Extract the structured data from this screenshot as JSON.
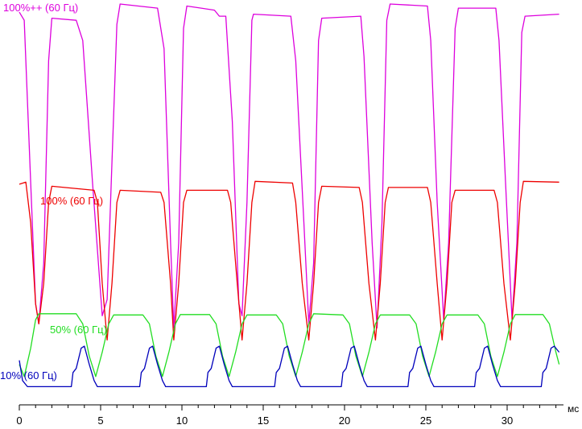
{
  "chart_data": {
    "type": "line",
    "title": "",
    "xlabel": "мс",
    "ylabel": "",
    "xlim": [
      0,
      33.2
    ],
    "ylim": [
      0,
      1
    ],
    "grid": false,
    "x_ticks": [
      0,
      5,
      10,
      15,
      20,
      25,
      30
    ],
    "x_tick_labels": [
      "0",
      "5",
      "10",
      "15",
      "20",
      "25",
      "30"
    ],
    "period_ms": 4.17,
    "series": [
      {
        "name": "100%++ (60 Гц)",
        "color": "#dd00dd",
        "points": [
          [
            0,
            0.97
          ],
          [
            0.3,
            0.95
          ],
          [
            0.7,
            0.55
          ],
          [
            1.0,
            0.25
          ],
          [
            1.2,
            0.2
          ],
          [
            1.5,
            0.35
          ],
          [
            1.8,
            0.85
          ],
          [
            2.0,
            0.955
          ],
          [
            3.5,
            0.95
          ],
          [
            3.9,
            0.9
          ],
          [
            4.5,
            0.55
          ],
          [
            5.1,
            0.22
          ],
          [
            5.4,
            0.26
          ],
          [
            5.7,
            0.6
          ],
          [
            6.0,
            0.94
          ],
          [
            6.2,
            0.99
          ],
          [
            8.5,
            0.98
          ],
          [
            8.9,
            0.88
          ],
          [
            9.3,
            0.4
          ],
          [
            9.5,
            0.19
          ],
          [
            9.8,
            0.4
          ],
          [
            10.1,
            0.93
          ],
          [
            10.3,
            0.985
          ],
          [
            12.0,
            0.975
          ],
          [
            12.3,
            0.96
          ],
          [
            12.7,
            0.96
          ],
          [
            13.1,
            0.7
          ],
          [
            13.5,
            0.25
          ],
          [
            13.7,
            0.22
          ],
          [
            14.0,
            0.5
          ],
          [
            14.3,
            0.95
          ],
          [
            14.4,
            0.965
          ],
          [
            16.7,
            0.96
          ],
          [
            17.0,
            0.85
          ],
          [
            17.5,
            0.45
          ],
          [
            17.8,
            0.2
          ],
          [
            18.1,
            0.35
          ],
          [
            18.4,
            0.9
          ],
          [
            18.6,
            0.955
          ],
          [
            21.0,
            0.96
          ],
          [
            21.2,
            0.86
          ],
          [
            21.7,
            0.4
          ],
          [
            22.0,
            0.19
          ],
          [
            22.3,
            0.45
          ],
          [
            22.6,
            0.95
          ],
          [
            22.8,
            0.99
          ],
          [
            25.1,
            0.985
          ],
          [
            25.3,
            0.9
          ],
          [
            25.7,
            0.5
          ],
          [
            26.1,
            0.21
          ],
          [
            26.4,
            0.4
          ],
          [
            26.8,
            0.93
          ],
          [
            27.0,
            0.98
          ],
          [
            29.3,
            0.98
          ],
          [
            29.5,
            0.9
          ],
          [
            29.9,
            0.55
          ],
          [
            30.3,
            0.21
          ],
          [
            30.6,
            0.4
          ],
          [
            30.9,
            0.92
          ],
          [
            31.1,
            0.96
          ],
          [
            33.2,
            0.965
          ]
        ]
      },
      {
        "name": "100% (60 Гц)",
        "color": "#ee0000",
        "points": [
          [
            0,
            0.545
          ],
          [
            0.4,
            0.55
          ],
          [
            0.7,
            0.45
          ],
          [
            1.0,
            0.25
          ],
          [
            1.2,
            0.2
          ],
          [
            1.5,
            0.3
          ],
          [
            1.8,
            0.5
          ],
          [
            2.0,
            0.54
          ],
          [
            4.6,
            0.53
          ],
          [
            4.8,
            0.5
          ],
          [
            5.1,
            0.3
          ],
          [
            5.4,
            0.16
          ],
          [
            5.7,
            0.3
          ],
          [
            6.0,
            0.5
          ],
          [
            6.2,
            0.53
          ],
          [
            8.7,
            0.525
          ],
          [
            8.9,
            0.5
          ],
          [
            9.3,
            0.3
          ],
          [
            9.5,
            0.16
          ],
          [
            9.8,
            0.3
          ],
          [
            10.1,
            0.5
          ],
          [
            10.3,
            0.53
          ],
          [
            12.8,
            0.53
          ],
          [
            13.0,
            0.5
          ],
          [
            13.4,
            0.3
          ],
          [
            13.7,
            0.16
          ],
          [
            14.0,
            0.3
          ],
          [
            14.3,
            0.5
          ],
          [
            14.5,
            0.552
          ],
          [
            16.8,
            0.548
          ],
          [
            17.0,
            0.5
          ],
          [
            17.4,
            0.3
          ],
          [
            17.8,
            0.16
          ],
          [
            18.1,
            0.3
          ],
          [
            18.4,
            0.5
          ],
          [
            18.6,
            0.54
          ],
          [
            20.9,
            0.537
          ],
          [
            21.1,
            0.5
          ],
          [
            21.5,
            0.3
          ],
          [
            21.9,
            0.16
          ],
          [
            22.2,
            0.3
          ],
          [
            22.5,
            0.5
          ],
          [
            22.7,
            0.537
          ],
          [
            25.1,
            0.537
          ],
          [
            25.3,
            0.5
          ],
          [
            25.7,
            0.3
          ],
          [
            26.0,
            0.16
          ],
          [
            26.3,
            0.3
          ],
          [
            26.6,
            0.5
          ],
          [
            26.8,
            0.53
          ],
          [
            29.2,
            0.53
          ],
          [
            29.4,
            0.5
          ],
          [
            29.8,
            0.3
          ],
          [
            30.2,
            0.16
          ],
          [
            30.5,
            0.3
          ],
          [
            30.8,
            0.5
          ],
          [
            31.0,
            0.552
          ],
          [
            33.2,
            0.55
          ]
        ]
      },
      {
        "name": "50% (60 Гц)",
        "color": "#22dd22",
        "points": [
          [
            0,
            0.1
          ],
          [
            0.3,
            0.07
          ],
          [
            0.7,
            0.14
          ],
          [
            1.0,
            0.21
          ],
          [
            1.2,
            0.225
          ],
          [
            3.5,
            0.225
          ],
          [
            3.9,
            0.2
          ],
          [
            4.3,
            0.12
          ],
          [
            4.7,
            0.07
          ],
          [
            5.1,
            0.13
          ],
          [
            5.5,
            0.2
          ],
          [
            5.8,
            0.222
          ],
          [
            7.6,
            0.222
          ],
          [
            8.0,
            0.2
          ],
          [
            8.4,
            0.12
          ],
          [
            8.8,
            0.07
          ],
          [
            9.2,
            0.13
          ],
          [
            9.6,
            0.2
          ],
          [
            9.9,
            0.223
          ],
          [
            11.7,
            0.223
          ],
          [
            12.1,
            0.2
          ],
          [
            12.5,
            0.12
          ],
          [
            12.9,
            0.07
          ],
          [
            13.3,
            0.13
          ],
          [
            13.7,
            0.2
          ],
          [
            14.0,
            0.222
          ],
          [
            15.8,
            0.222
          ],
          [
            16.2,
            0.2
          ],
          [
            16.6,
            0.12
          ],
          [
            17.0,
            0.07
          ],
          [
            17.4,
            0.13
          ],
          [
            17.8,
            0.2
          ],
          [
            18.1,
            0.225
          ],
          [
            19.9,
            0.222
          ],
          [
            20.3,
            0.2
          ],
          [
            20.7,
            0.12
          ],
          [
            21.1,
            0.07
          ],
          [
            21.5,
            0.13
          ],
          [
            21.9,
            0.2
          ],
          [
            22.2,
            0.222
          ],
          [
            24.0,
            0.222
          ],
          [
            24.4,
            0.2
          ],
          [
            24.8,
            0.12
          ],
          [
            25.2,
            0.07
          ],
          [
            25.6,
            0.13
          ],
          [
            26.0,
            0.2
          ],
          [
            26.3,
            0.222
          ],
          [
            28.2,
            0.222
          ],
          [
            28.6,
            0.2
          ],
          [
            29.0,
            0.12
          ],
          [
            29.4,
            0.07
          ],
          [
            29.8,
            0.13
          ],
          [
            30.2,
            0.2
          ],
          [
            30.5,
            0.223
          ],
          [
            32.2,
            0.223
          ],
          [
            32.6,
            0.2
          ],
          [
            33.0,
            0.13
          ],
          [
            33.2,
            0.1
          ]
        ]
      },
      {
        "name": "10% (60 Гц)",
        "color": "#0000bb",
        "points": [
          [
            0,
            0.11
          ],
          [
            0.2,
            0.06
          ],
          [
            0.5,
            0.045
          ],
          [
            3.2,
            0.045
          ],
          [
            3.3,
            0.08
          ],
          [
            3.5,
            0.09
          ],
          [
            3.8,
            0.14
          ],
          [
            4.0,
            0.145
          ],
          [
            4.3,
            0.1
          ],
          [
            4.6,
            0.06
          ],
          [
            4.8,
            0.045
          ],
          [
            7.4,
            0.045
          ],
          [
            7.5,
            0.08
          ],
          [
            7.7,
            0.09
          ],
          [
            8.0,
            0.14
          ],
          [
            8.2,
            0.145
          ],
          [
            8.5,
            0.1
          ],
          [
            8.8,
            0.06
          ],
          [
            9.0,
            0.045
          ],
          [
            11.5,
            0.045
          ],
          [
            11.6,
            0.08
          ],
          [
            11.8,
            0.09
          ],
          [
            12.1,
            0.14
          ],
          [
            12.3,
            0.145
          ],
          [
            12.6,
            0.1
          ],
          [
            12.9,
            0.06
          ],
          [
            13.1,
            0.045
          ],
          [
            15.7,
            0.045
          ],
          [
            15.8,
            0.08
          ],
          [
            16.0,
            0.09
          ],
          [
            16.3,
            0.14
          ],
          [
            16.5,
            0.145
          ],
          [
            16.8,
            0.1
          ],
          [
            17.1,
            0.06
          ],
          [
            17.3,
            0.045
          ],
          [
            19.8,
            0.045
          ],
          [
            19.9,
            0.08
          ],
          [
            20.1,
            0.09
          ],
          [
            20.4,
            0.14
          ],
          [
            20.6,
            0.145
          ],
          [
            20.9,
            0.1
          ],
          [
            21.2,
            0.06
          ],
          [
            21.4,
            0.045
          ],
          [
            23.9,
            0.045
          ],
          [
            24.0,
            0.08
          ],
          [
            24.2,
            0.09
          ],
          [
            24.5,
            0.14
          ],
          [
            24.7,
            0.145
          ],
          [
            25.0,
            0.1
          ],
          [
            25.3,
            0.06
          ],
          [
            25.5,
            0.045
          ],
          [
            28.0,
            0.045
          ],
          [
            28.1,
            0.08
          ],
          [
            28.3,
            0.09
          ],
          [
            28.6,
            0.14
          ],
          [
            28.8,
            0.145
          ],
          [
            29.1,
            0.1
          ],
          [
            29.4,
            0.06
          ],
          [
            29.6,
            0.045
          ],
          [
            32.1,
            0.045
          ],
          [
            32.2,
            0.08
          ],
          [
            32.4,
            0.09
          ],
          [
            32.7,
            0.14
          ],
          [
            32.9,
            0.145
          ],
          [
            33.2,
            0.13
          ]
        ]
      }
    ]
  }
}
